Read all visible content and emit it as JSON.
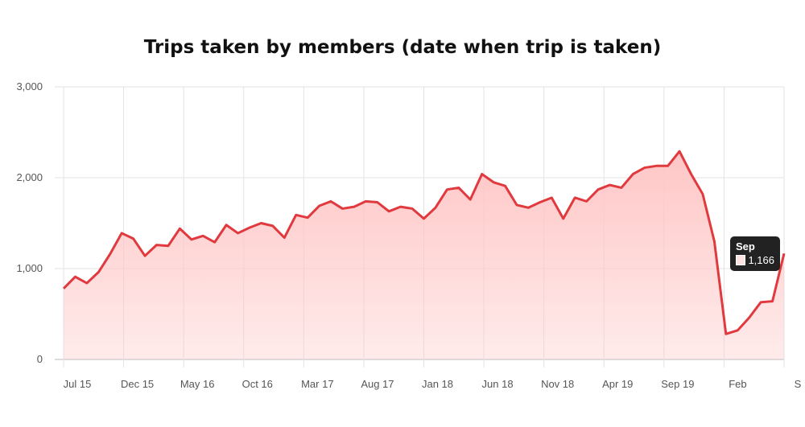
{
  "chart_data": {
    "type": "area",
    "title": "Trips taken by members (date when trip is taken)",
    "xlabel": "",
    "ylabel": "",
    "ylim": [
      0,
      3000
    ],
    "yticks": [
      0,
      1000,
      2000,
      3000
    ],
    "ytick_labels": [
      "0",
      "1,000",
      "2,000",
      "3,000"
    ],
    "xtick_labels": [
      "Jul 15",
      "Dec 15",
      "May 16",
      "Oct 16",
      "Mar 17",
      "Aug 17",
      "Jan 18",
      "Jun 18",
      "Nov 18",
      "Apr 19",
      "Sep 19",
      "Feb",
      "S"
    ],
    "grid": true,
    "line_color": "#e0393e",
    "fill_color": "#ffc6c6",
    "series": [
      {
        "values": [
          780,
          910,
          840,
          960,
          1160,
          1390,
          1330,
          1140,
          1260,
          1250,
          1440,
          1320,
          1360,
          1290,
          1480,
          1390,
          1450,
          1500,
          1470,
          1340,
          1590,
          1560,
          1690,
          1740,
          1660,
          1680,
          1740,
          1730,
          1630,
          1680,
          1660,
          1550,
          1670,
          1870,
          1890,
          1760,
          2040,
          1950,
          1910,
          1700,
          1670,
          1730,
          1780,
          1550,
          1780,
          1740,
          1870,
          1920,
          1890,
          2040,
          2110,
          2130,
          2130,
          2290,
          2040,
          1820,
          1300,
          280,
          320,
          460,
          630,
          640,
          1166
        ]
      }
    ],
    "tooltip": {
      "title": "Sep",
      "value": "1,166"
    }
  }
}
